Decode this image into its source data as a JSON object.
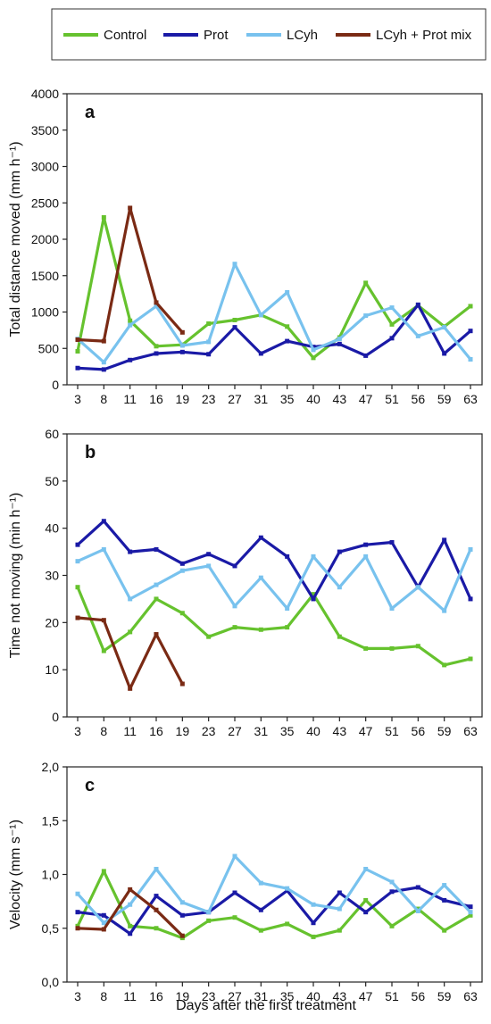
{
  "legend": {
    "placement": "top",
    "items": [
      {
        "label": "Control",
        "color": "#66c22e"
      },
      {
        "label": "Prot",
        "color": "#1a1aa6"
      },
      {
        "label": "LCyh",
        "color": "#78c2ee"
      },
      {
        "label": "LCyh + Prot mix",
        "color": "#7a2a14"
      }
    ]
  },
  "xlabel": "Days after the first treatment",
  "chart_data": [
    {
      "type": "line",
      "panel_label": "a",
      "ylabel": "Total distance moved (mm h⁻¹)",
      "ylim": [
        0,
        4000
      ],
      "yticks": [
        0,
        500,
        1000,
        1500,
        2000,
        2500,
        3000,
        3500,
        4000
      ],
      "ytick_labels": [
        "0",
        "500",
        "1000",
        "1500",
        "2000",
        "2500",
        "3000",
        "3500",
        "4000"
      ],
      "x": [
        "3",
        "8",
        "11",
        "16",
        "19",
        "23",
        "27",
        "31",
        "35",
        "40",
        "43",
        "47",
        "51",
        "56",
        "59",
        "63"
      ],
      "series": [
        {
          "name": "Control",
          "color": "#66c22e",
          "values": [
            460,
            2300,
            880,
            530,
            550,
            840,
            890,
            960,
            800,
            370,
            650,
            1400,
            830,
            1090,
            800,
            1080
          ]
        },
        {
          "name": "Prot",
          "color": "#1a1aa6",
          "values": [
            230,
            210,
            340,
            430,
            450,
            420,
            790,
            430,
            600,
            520,
            560,
            400,
            640,
            1100,
            430,
            740
          ]
        },
        {
          "name": "LCyh",
          "color": "#78c2ee",
          "values": [
            630,
            310,
            820,
            1080,
            540,
            590,
            1660,
            960,
            1270,
            480,
            630,
            950,
            1060,
            670,
            790,
            350
          ]
        },
        {
          "name": "LCyh + Prot mix",
          "color": "#7a2a14",
          "values": [
            620,
            600,
            2430,
            1130,
            720,
            null,
            null,
            null,
            null,
            null,
            null,
            null,
            null,
            null,
            null,
            null
          ]
        }
      ]
    },
    {
      "type": "line",
      "panel_label": "b",
      "ylabel": "Time not moving (min h⁻¹)",
      "ylim": [
        0,
        60
      ],
      "yticks": [
        0,
        10,
        20,
        30,
        40,
        50,
        60
      ],
      "ytick_labels": [
        "0",
        "10",
        "20",
        "30",
        "40",
        "50",
        "60"
      ],
      "x": [
        "3",
        "8",
        "11",
        "16",
        "19",
        "23",
        "27",
        "31",
        "35",
        "40",
        "43",
        "47",
        "51",
        "56",
        "59",
        "63"
      ],
      "series": [
        {
          "name": "Control",
          "color": "#66c22e",
          "values": [
            27.5,
            14,
            18,
            25,
            22,
            17,
            19,
            18.5,
            19,
            26,
            17,
            14.5,
            14.5,
            15,
            11,
            12.3
          ]
        },
        {
          "name": "Prot",
          "color": "#1a1aa6",
          "values": [
            36.5,
            41.5,
            35,
            35.5,
            32.5,
            34.5,
            32,
            38,
            34,
            25,
            35,
            36.5,
            37,
            27.5,
            37.5,
            25
          ]
        },
        {
          "name": "LCyh",
          "color": "#78c2ee",
          "values": [
            33,
            35.5,
            25,
            28,
            31,
            32,
            23.5,
            29.5,
            23,
            34,
            27.5,
            34,
            23,
            27.5,
            22.5,
            35.5
          ]
        },
        {
          "name": "LCyh + Prot mix",
          "color": "#7a2a14",
          "values": [
            21,
            20.5,
            6,
            17.5,
            7,
            null,
            null,
            null,
            null,
            null,
            null,
            null,
            null,
            null,
            null,
            null
          ]
        }
      ]
    },
    {
      "type": "line",
      "panel_label": "c",
      "ylabel": "Velocity (mm s⁻¹)",
      "ylim": [
        0,
        2
      ],
      "yticks": [
        0,
        0.5,
        1,
        1.5,
        2
      ],
      "ytick_labels": [
        "0,0",
        "0,5",
        "1,0",
        "1,5",
        "2,0"
      ],
      "x": [
        "3",
        "8",
        "11",
        "16",
        "19",
        "23",
        "27",
        "31",
        "35",
        "40",
        "43",
        "47",
        "51",
        "56",
        "59",
        "63"
      ],
      "series": [
        {
          "name": "Control",
          "color": "#66c22e",
          "values": [
            0.52,
            1.03,
            0.52,
            0.5,
            0.41,
            0.57,
            0.6,
            0.48,
            0.54,
            0.42,
            0.48,
            0.76,
            0.52,
            0.68,
            0.48,
            0.62
          ]
        },
        {
          "name": "Prot",
          "color": "#1a1aa6",
          "values": [
            0.65,
            0.62,
            0.45,
            0.8,
            0.62,
            0.65,
            0.83,
            0.67,
            0.85,
            0.55,
            0.83,
            0.65,
            0.84,
            0.88,
            0.76,
            0.7
          ]
        },
        {
          "name": "LCyh",
          "color": "#78c2ee",
          "values": [
            0.82,
            0.55,
            0.72,
            1.05,
            0.74,
            0.65,
            1.17,
            0.92,
            0.87,
            0.72,
            0.68,
            1.05,
            0.93,
            0.66,
            0.9,
            0.65
          ]
        },
        {
          "name": "LCyh + Prot mix",
          "color": "#7a2a14",
          "values": [
            0.5,
            0.49,
            0.86,
            0.67,
            0.43,
            null,
            null,
            null,
            null,
            null,
            null,
            null,
            null,
            null,
            null,
            null
          ]
        }
      ]
    }
  ]
}
